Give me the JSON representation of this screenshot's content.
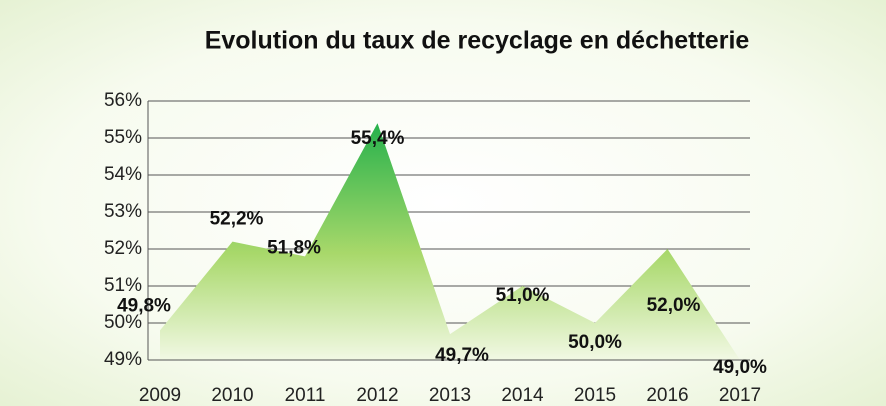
{
  "chart_data": {
    "type": "area",
    "title": "Evolution du taux de recyclage en déchetterie",
    "categories": [
      "2009",
      "2010",
      "2011",
      "2012",
      "2013",
      "2014",
      "2015",
      "2016",
      "2017"
    ],
    "values": [
      49.8,
      52.2,
      51.8,
      55.4,
      49.7,
      51.0,
      50.0,
      52.0,
      49.0
    ],
    "value_labels": [
      "49,8%",
      "52,2%",
      "51,8%",
      "55,4%",
      "49,7%",
      "51,0%",
      "50,0%",
      "52,0%",
      "49,0%"
    ],
    "color": "#22b04b",
    "ylim": [
      49,
      56
    ],
    "yticks": [
      {
        "value": 49,
        "label": "49%"
      },
      {
        "value": 50,
        "label": "50%"
      },
      {
        "value": 51,
        "label": "51%"
      },
      {
        "value": 52,
        "label": "52%"
      },
      {
        "value": 53,
        "label": "53%"
      },
      {
        "value": 54,
        "label": "54%"
      },
      {
        "value": 55,
        "label": "55%"
      },
      {
        "value": 56,
        "label": "56%"
      }
    ],
    "grid": true
  }
}
